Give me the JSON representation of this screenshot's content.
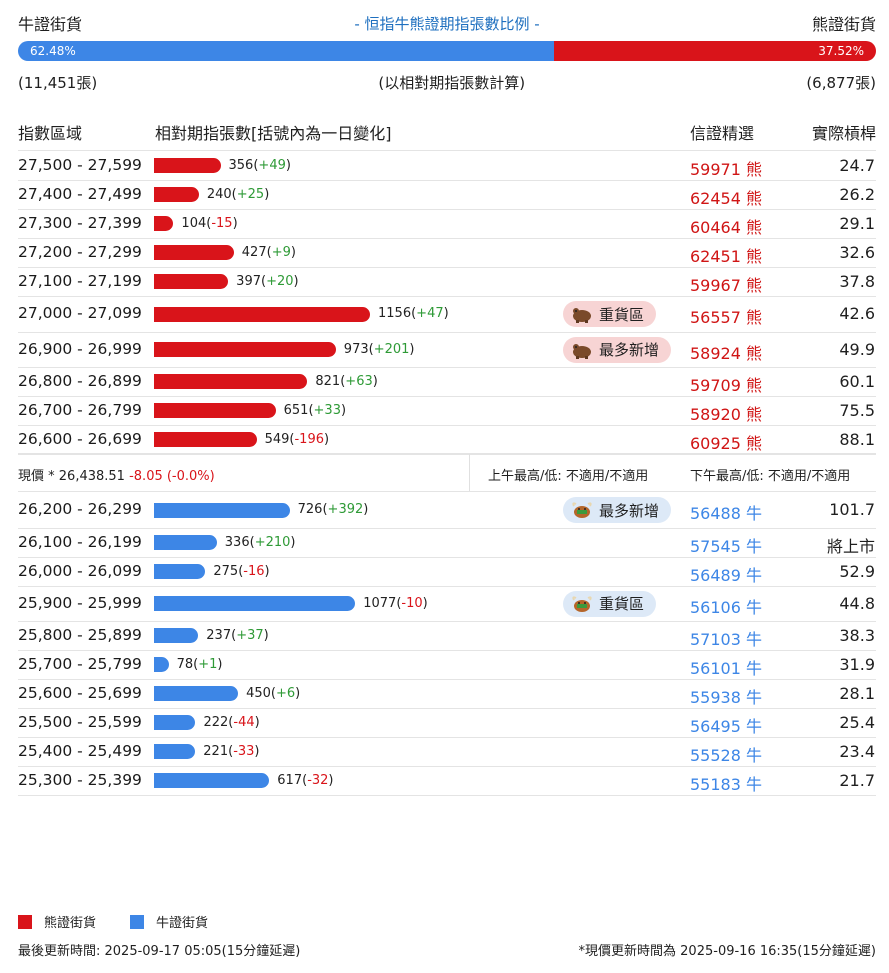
{
  "header": {
    "bull_label": "牛證街貨",
    "title": "- 恒指牛熊證期指張數比例 -",
    "bear_label": "熊證街貨",
    "bull_percent_label": "62.48%",
    "bear_percent_label": "37.52%",
    "bull_share": 0.6248,
    "bull_count": "(11,451張)",
    "note": "(以相對期指張數計算)",
    "bear_count": "(6,877張)"
  },
  "columns": {
    "range": "指數區域",
    "qty": "相對期指張數[括號內為一日變化]",
    "pick": "信證精選",
    "ratio": "實際槓桿"
  },
  "max_qty": 1156,
  "bear_rows": [
    {
      "range": "27,500 - 27,599",
      "qty": 356,
      "qty_text": "356",
      "change": "+49",
      "code": "59971",
      "type": "熊",
      "ratio": "24.7"
    },
    {
      "range": "27,400 - 27,499",
      "qty": 240,
      "qty_text": "240",
      "change": "+25",
      "code": "62454",
      "type": "熊",
      "ratio": "26.2"
    },
    {
      "range": "27,300 - 27,399",
      "qty": 104,
      "qty_text": "104",
      "change": "-15",
      "code": "60464",
      "type": "熊",
      "ratio": "29.1"
    },
    {
      "range": "27,200 - 27,299",
      "qty": 427,
      "qty_text": "427",
      "change": "+9",
      "code": "62451",
      "type": "熊",
      "ratio": "32.6"
    },
    {
      "range": "27,100 - 27,199",
      "qty": 397,
      "qty_text": "397",
      "change": "+20",
      "code": "59967",
      "type": "熊",
      "ratio": "37.8"
    },
    {
      "range": "27,000 - 27,099",
      "qty": 1156,
      "qty_text": "1156",
      "change": "+47",
      "code": "56557",
      "type": "熊",
      "ratio": "42.6",
      "badge": "重貨區"
    },
    {
      "range": "26,900 - 26,999",
      "qty": 973,
      "qty_text": "973",
      "change": "+201",
      "code": "58924",
      "type": "熊",
      "ratio": "49.9",
      "badge": "最多新增"
    },
    {
      "range": "26,800 - 26,899",
      "qty": 821,
      "qty_text": "821",
      "change": "+63",
      "code": "59709",
      "type": "熊",
      "ratio": "60.1"
    },
    {
      "range": "26,700 - 26,799",
      "qty": 651,
      "qty_text": "651",
      "change": "+33",
      "code": "58920",
      "type": "熊",
      "ratio": "75.5"
    },
    {
      "range": "26,600 - 26,699",
      "qty": 549,
      "qty_text": "549",
      "change": "-196",
      "code": "60925",
      "type": "熊",
      "ratio": "88.1"
    }
  ],
  "current": {
    "label": "現價 *",
    "price": "26,438.51",
    "change": "-8.05 (-0.0%)",
    "am": "上午最高/低: 不適用/不適用",
    "pm": "下午最高/低: 不適用/不適用"
  },
  "bull_rows": [
    {
      "range": "26,200 - 26,299",
      "qty": 726,
      "qty_text": "726",
      "change": "+392",
      "code": "56488",
      "type": "牛",
      "ratio": "101.7",
      "badge": "最多新增"
    },
    {
      "range": "26,100 - 26,199",
      "qty": 336,
      "qty_text": "336",
      "change": "+210",
      "code": "57545",
      "type": "牛",
      "ratio": "將上市"
    },
    {
      "range": "26,000 - 26,099",
      "qty": 275,
      "qty_text": "275",
      "change": "-16",
      "code": "56489",
      "type": "牛",
      "ratio": "52.9"
    },
    {
      "range": "25,900 - 25,999",
      "qty": 1077,
      "qty_text": "1077",
      "change": "-10",
      "code": "56106",
      "type": "牛",
      "ratio": "44.8",
      "badge": "重貨區"
    },
    {
      "range": "25,800 - 25,899",
      "qty": 237,
      "qty_text": "237",
      "change": "+37",
      "code": "57103",
      "type": "牛",
      "ratio": "38.3"
    },
    {
      "range": "25,700 - 25,799",
      "qty": 78,
      "qty_text": "78",
      "change": "+1",
      "code": "56101",
      "type": "牛",
      "ratio": "31.9"
    },
    {
      "range": "25,600 - 25,699",
      "qty": 450,
      "qty_text": "450",
      "change": "+6",
      "code": "55938",
      "type": "牛",
      "ratio": "28.1"
    },
    {
      "range": "25,500 - 25,599",
      "qty": 222,
      "qty_text": "222",
      "change": "-44",
      "code": "56495",
      "type": "牛",
      "ratio": "25.4"
    },
    {
      "range": "25,400 - 25,499",
      "qty": 221,
      "qty_text": "221",
      "change": "-33",
      "code": "55528",
      "type": "牛",
      "ratio": "23.4"
    },
    {
      "range": "25,300 - 25,399",
      "qty": 617,
      "qty_text": "617",
      "change": "-32",
      "code": "55183",
      "type": "牛",
      "ratio": "21.7"
    }
  ],
  "legend": {
    "bear": "熊證街貨",
    "bull": "牛證街貨"
  },
  "footer": {
    "updated": "最後更新時間: 2025-09-17 05:05(15分鐘延遲)",
    "price_updated": "*現價更新時間為 2025-09-16 16:35(15分鐘延遲)"
  },
  "colors": {
    "bear": "#d9141a",
    "bull": "#3d86e6",
    "up": "#2e9a36",
    "down": "#d9141a"
  },
  "icons": {
    "bear_badge": "bear-icon",
    "bull_badge": "bull-icon"
  }
}
